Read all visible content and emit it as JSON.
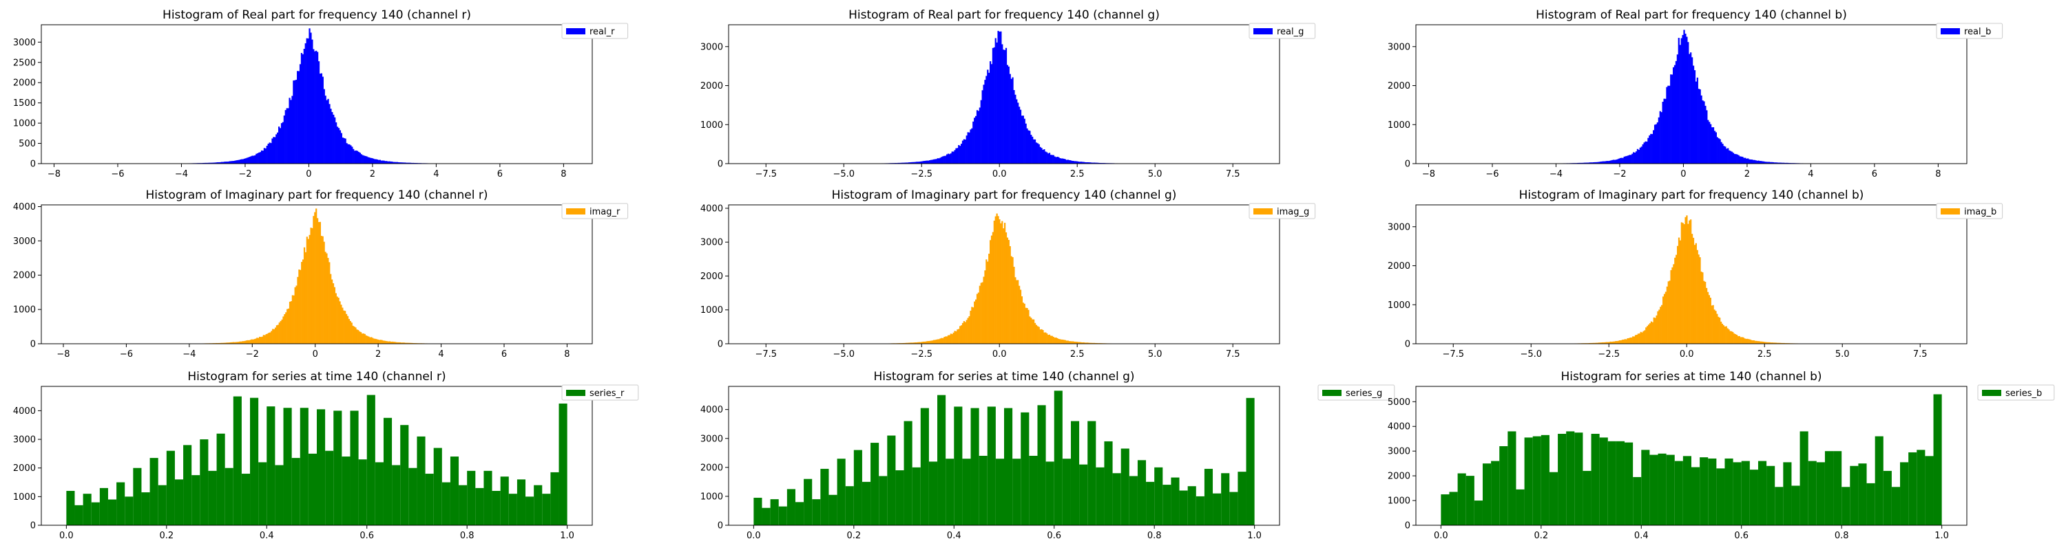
{
  "chart_data": [
    {
      "type": "bar",
      "title": "Histogram of Real part for frequency 140 (channel r)",
      "series_name": "real_r",
      "color": "#0000ff",
      "bin_edges": [
        -8.1,
        8.6
      ],
      "xlim": [
        -8.4,
        8.9
      ],
      "ylim": [
        0,
        3430
      ],
      "xticks": [
        -8,
        -6,
        -4,
        -2,
        0,
        2,
        4,
        6,
        8
      ],
      "xtick_labels": [
        "−8",
        "−6",
        "−4",
        "−2",
        "0",
        "2",
        "4",
        "6",
        "8"
      ],
      "yticks": [
        0,
        500,
        1000,
        1500,
        2000,
        2500,
        3000
      ],
      "ytick_labels": [
        "0",
        "500",
        "1000",
        "1500",
        "2000",
        "2500",
        "3000"
      ],
      "peak": 3300,
      "peak_at": 0.0,
      "width": 1.0,
      "shape": "laplace",
      "bins": 400,
      "seed": 11
    },
    {
      "type": "bar",
      "title": "Histogram of Real part for frequency 140 (channel g)",
      "series_name": "real_g",
      "color": "#0000ff",
      "bin_edges": [
        -8.3,
        8.6
      ],
      "xlim": [
        -8.7,
        9.0
      ],
      "ylim": [
        0,
        3560
      ],
      "xticks": [
        -7.5,
        -5.0,
        -2.5,
        0.0,
        2.5,
        5.0,
        7.5
      ],
      "xtick_labels": [
        "−7.5",
        "−5.0",
        "−2.5",
        "0.0",
        "2.5",
        "5.0",
        "7.5"
      ],
      "yticks": [
        0,
        1000,
        2000,
        3000
      ],
      "ytick_labels": [
        "0",
        "1000",
        "2000",
        "3000"
      ],
      "peak": 3380,
      "peak_at": 0.0,
      "width": 1.0,
      "shape": "laplace",
      "bins": 400,
      "seed": 23
    },
    {
      "type": "bar",
      "title": "Histogram of Real part for frequency 140 (channel b)",
      "series_name": "real_b",
      "color": "#0000ff",
      "bin_edges": [
        -8.1,
        8.6
      ],
      "xlim": [
        -8.4,
        8.9
      ],
      "ylim": [
        0,
        3560
      ],
      "xticks": [
        -8,
        -6,
        -4,
        -2,
        0,
        2,
        4,
        6,
        8
      ],
      "xtick_labels": [
        "−8",
        "−6",
        "−4",
        "−2",
        "0",
        "2",
        "4",
        "6",
        "8"
      ],
      "yticks": [
        0,
        1000,
        2000,
        3000
      ],
      "ytick_labels": [
        "0",
        "1000",
        "2000",
        "3000"
      ],
      "peak": 3390,
      "peak_at": 0.0,
      "width": 1.0,
      "shape": "laplace",
      "bins": 400,
      "seed": 37
    },
    {
      "type": "bar",
      "title": "Histogram of Imaginary part for frequency 140 (channel r)",
      "series_name": "imag_r",
      "color": "#ffa500",
      "bin_edges": [
        -8.3,
        8.4
      ],
      "xlim": [
        -8.7,
        8.8
      ],
      "ylim": [
        0,
        4050
      ],
      "xticks": [
        -8,
        -6,
        -4,
        -2,
        0,
        2,
        4,
        6,
        8
      ],
      "xtick_labels": [
        "−8",
        "−6",
        "−4",
        "−2",
        "0",
        "2",
        "4",
        "6",
        "8"
      ],
      "yticks": [
        0,
        1000,
        2000,
        3000,
        4000
      ],
      "ytick_labels": [
        "0",
        "1000",
        "2000",
        "3000",
        "4000"
      ],
      "peak": 3850,
      "peak_at": 0.0,
      "width": 0.95,
      "shape": "laplace",
      "bins": 400,
      "seed": 41
    },
    {
      "type": "bar",
      "title": "Histogram of Imaginary part for frequency 140 (channel g)",
      "series_name": "imag_g",
      "color": "#ffa500",
      "bin_edges": [
        -8.3,
        8.6
      ],
      "xlim": [
        -8.7,
        9.0
      ],
      "ylim": [
        0,
        4100
      ],
      "xticks": [
        -7.5,
        -5.0,
        -2.5,
        0.0,
        2.5,
        5.0,
        7.5
      ],
      "xtick_labels": [
        "−7.5",
        "−5.0",
        "−2.5",
        "0.0",
        "2.5",
        "5.0",
        "7.5"
      ],
      "yticks": [
        0,
        1000,
        2000,
        3000,
        4000
      ],
      "ytick_labels": [
        "0",
        "1000",
        "2000",
        "3000",
        "4000"
      ],
      "peak": 3900,
      "peak_at": 0.0,
      "width": 0.95,
      "shape": "laplace",
      "bins": 400,
      "seed": 53
    },
    {
      "type": "bar",
      "title": "Histogram of Imaginary part for frequency 140 (channel b)",
      "series_name": "imag_b",
      "color": "#ffa500",
      "bin_edges": [
        -8.3,
        8.6
      ],
      "xlim": [
        -8.7,
        9.0
      ],
      "ylim": [
        0,
        3560
      ],
      "xticks": [
        -7.5,
        -5.0,
        -2.5,
        0.0,
        2.5,
        5.0,
        7.5
      ],
      "xtick_labels": [
        "−7.5",
        "−5.0",
        "−2.5",
        "0.0",
        "2.5",
        "5.0",
        "7.5"
      ],
      "yticks": [
        0,
        1000,
        2000,
        3000
      ],
      "ytick_labels": [
        "0",
        "1000",
        "2000",
        "3000"
      ],
      "peak": 3390,
      "peak_at": 0.0,
      "width": 0.95,
      "shape": "laplace",
      "bins": 400,
      "seed": 67
    },
    {
      "type": "bar",
      "title": "Histogram for series at time 140 (channel r)",
      "series_name": "series_r",
      "color": "#008000",
      "bin_edges": [
        0.0,
        1.0
      ],
      "xlim": [
        -0.05,
        1.05
      ],
      "ylim": [
        0,
        4850
      ],
      "xticks": [
        0.0,
        0.2,
        0.4,
        0.6,
        0.8,
        1.0
      ],
      "xtick_labels": [
        "0.0",
        "0.2",
        "0.4",
        "0.6",
        "0.8",
        "1.0"
      ],
      "yticks": [
        0,
        1000,
        2000,
        3000,
        4000
      ],
      "ytick_labels": [
        "0",
        "1000",
        "2000",
        "3000",
        "4000"
      ],
      "values": [
        1200,
        700,
        1100,
        800,
        1300,
        900,
        1500,
        1000,
        2000,
        1150,
        2350,
        1400,
        2600,
        1600,
        2800,
        1750,
        3000,
        1900,
        3200,
        2000,
        4500,
        1800,
        4450,
        2200,
        4150,
        2100,
        4100,
        2350,
        4100,
        2500,
        4050,
        2600,
        4000,
        2400,
        4000,
        2300,
        4550,
        2200,
        3750,
        2100,
        3500,
        2000,
        3100,
        1800,
        2700,
        1500,
        2400,
        1400,
        1900,
        1300,
        1900,
        1200,
        1700,
        1100,
        1600,
        1000,
        1400,
        1100,
        1850,
        4250
      ]
    },
    {
      "type": "bar",
      "title": "Histogram for series at time 140 (channel g)",
      "series_name": "series_g",
      "color": "#008000",
      "bin_edges": [
        0.0,
        1.0
      ],
      "xlim": [
        -0.05,
        1.05
      ],
      "ylim": [
        0,
        4800
      ],
      "xticks": [
        0.0,
        0.2,
        0.4,
        0.6,
        0.8,
        1.0
      ],
      "xtick_labels": [
        "0.0",
        "0.2",
        "0.4",
        "0.6",
        "0.8",
        "1.0"
      ],
      "yticks": [
        0,
        1000,
        2000,
        3000,
        4000
      ],
      "ytick_labels": [
        "0",
        "1000",
        "2000",
        "3000",
        "4000"
      ],
      "values": [
        950,
        600,
        900,
        650,
        1250,
        800,
        1600,
        900,
        1950,
        1050,
        2300,
        1350,
        2600,
        1500,
        2850,
        1700,
        3100,
        1900,
        3600,
        2000,
        4050,
        2200,
        4500,
        2300,
        4100,
        2300,
        4050,
        2400,
        4100,
        2300,
        4050,
        2300,
        3900,
        2400,
        4150,
        2200,
        4650,
        2300,
        3600,
        2100,
        3600,
        2000,
        2900,
        1800,
        2650,
        1700,
        2250,
        1500,
        2000,
        1400,
        1650,
        1200,
        1350,
        1000,
        1950,
        1100,
        1800,
        1150,
        1850,
        4400
      ]
    },
    {
      "type": "bar",
      "title": "Histogram for series at time 140 (channel b)",
      "series_name": "series_b",
      "color": "#008000",
      "bin_edges": [
        0.0,
        1.0
      ],
      "xlim": [
        -0.05,
        1.05
      ],
      "ylim": [
        0,
        5620
      ],
      "xticks": [
        0.0,
        0.2,
        0.4,
        0.6,
        0.8,
        1.0
      ],
      "xtick_labels": [
        "0.0",
        "0.2",
        "0.4",
        "0.6",
        "0.8",
        "1.0"
      ],
      "yticks": [
        0,
        1000,
        2000,
        3000,
        4000,
        5000
      ],
      "ytick_labels": [
        "0",
        "1000",
        "2000",
        "3000",
        "4000",
        "5000"
      ],
      "values": [
        1250,
        1350,
        2100,
        2000,
        1000,
        2500,
        2600,
        3200,
        3800,
        1450,
        3550,
        3600,
        3650,
        2150,
        3700,
        3800,
        3750,
        2200,
        3700,
        3550,
        3400,
        3400,
        3350,
        1950,
        3050,
        2850,
        2900,
        2850,
        2600,
        2800,
        2350,
        2750,
        2700,
        2300,
        2700,
        2550,
        2600,
        2250,
        2600,
        2400,
        1550,
        2550,
        1600,
        3800,
        2600,
        2550,
        3000,
        3000,
        1550,
        2400,
        2500,
        1700,
        3600,
        2200,
        1550,
        2550,
        2950,
        3050,
        2800,
        5300
      ]
    }
  ]
}
